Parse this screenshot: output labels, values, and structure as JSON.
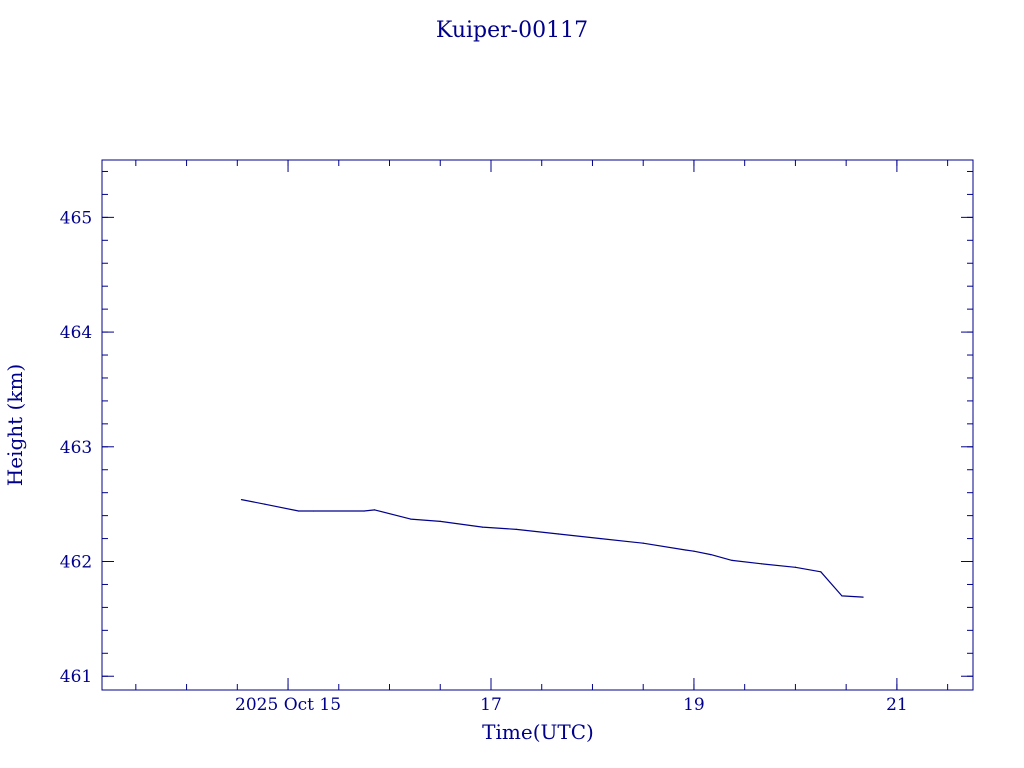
{
  "chart_data": {
    "type": "line",
    "title": "Kuiper-00117",
    "xlabel": "Time(UTC)",
    "ylabel": "Height (km)",
    "color": "#00008b",
    "background": "#ffffff",
    "grid": false,
    "legend": "none",
    "xlim": [
      "2025-10-13T04:00",
      "2025-10-21T18:00"
    ],
    "ylim": [
      460.88,
      465.5
    ],
    "x_ticks": [
      {
        "t": "2025-10-15T00:00",
        "label": "2025 Oct 15"
      },
      {
        "t": "2025-10-17T00:00",
        "label": "17"
      },
      {
        "t": "2025-10-19T00:00",
        "label": "19"
      },
      {
        "t": "2025-10-21T00:00",
        "label": "21"
      }
    ],
    "x_minor_tick_hours": 12,
    "y_ticks": [
      461,
      462,
      463,
      464,
      465
    ],
    "y_tick_labels": [
      "461",
      "462",
      "463",
      "464",
      "465"
    ],
    "y_minor_step": 0.2,
    "series": [
      {
        "points": [
          {
            "t": "2025-10-14T13:00",
            "y": 462.54
          },
          {
            "t": "2025-10-14T18:30",
            "y": 462.5
          },
          {
            "t": "2025-10-15T02:30",
            "y": 462.44
          },
          {
            "t": "2025-10-15T06:00",
            "y": 462.44
          },
          {
            "t": "2025-10-15T18:00",
            "y": 462.44
          },
          {
            "t": "2025-10-15T20:30",
            "y": 462.45
          },
          {
            "t": "2025-10-16T05:00",
            "y": 462.37
          },
          {
            "t": "2025-10-16T12:00",
            "y": 462.35
          },
          {
            "t": "2025-10-16T22:00",
            "y": 462.3
          },
          {
            "t": "2025-10-17T06:00",
            "y": 462.28
          },
          {
            "t": "2025-10-17T16:00",
            "y": 462.24
          },
          {
            "t": "2025-10-18T02:00",
            "y": 462.2
          },
          {
            "t": "2025-10-18T12:00",
            "y": 462.16
          },
          {
            "t": "2025-10-18T22:00",
            "y": 462.1
          },
          {
            "t": "2025-10-19T00:00",
            "y": 462.09
          },
          {
            "t": "2025-10-19T04:00",
            "y": 462.06
          },
          {
            "t": "2025-10-19T09:00",
            "y": 462.01
          },
          {
            "t": "2025-10-19T16:00",
            "y": 461.98
          },
          {
            "t": "2025-10-20T00:00",
            "y": 461.95
          },
          {
            "t": "2025-10-20T06:00",
            "y": 461.91
          },
          {
            "t": "2025-10-20T11:00",
            "y": 461.7
          },
          {
            "t": "2025-10-20T16:00",
            "y": 461.69
          }
        ]
      }
    ]
  }
}
